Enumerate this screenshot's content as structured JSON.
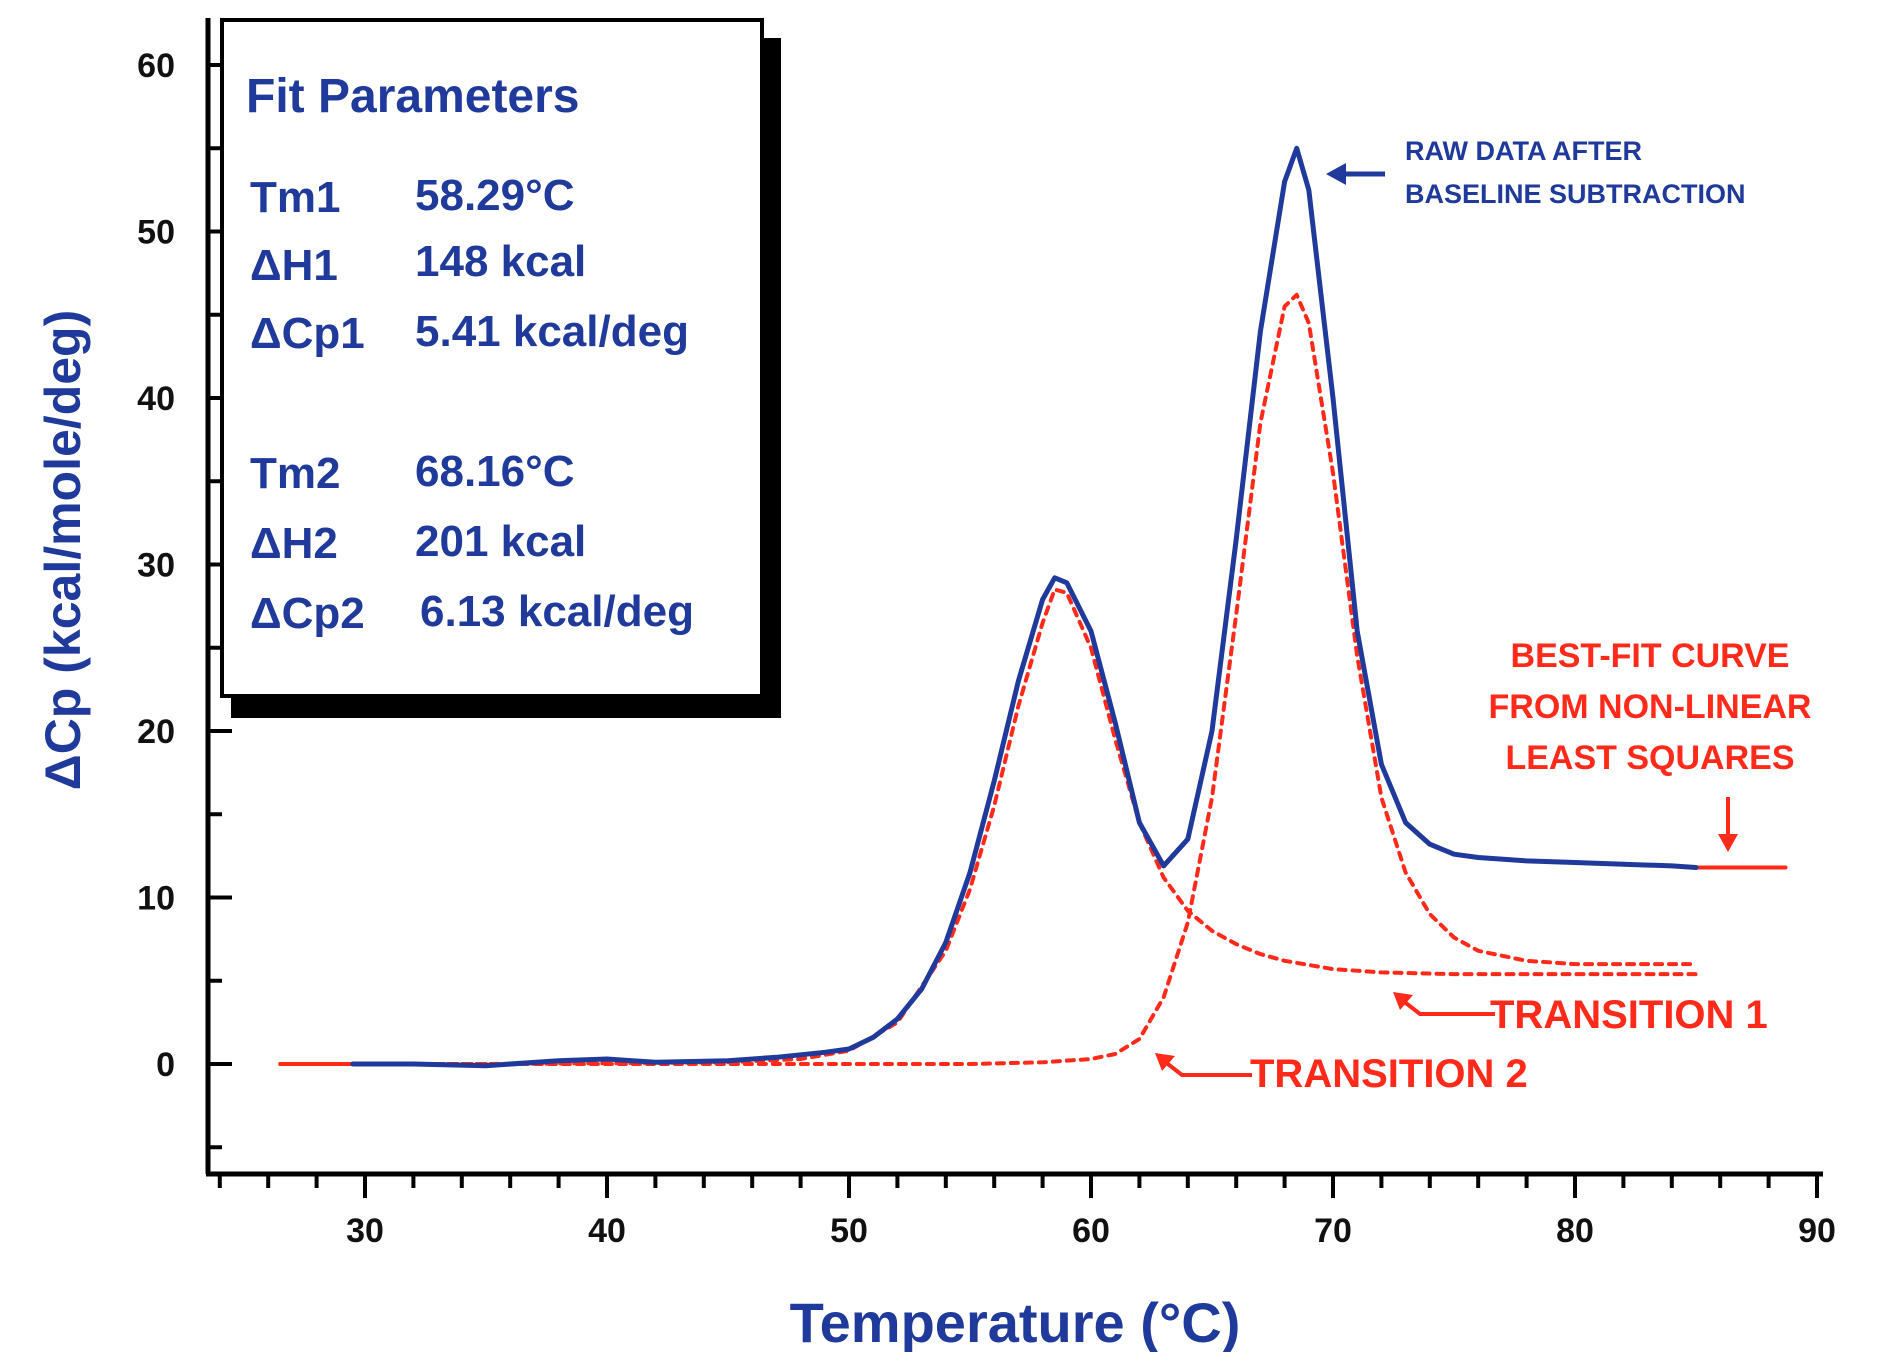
{
  "chart_data": {
    "type": "line",
    "title": "",
    "xlabel": "Temperature (°C)",
    "ylabel": "ΔCp (kcal/mole/deg)",
    "xlim": [
      24,
      90
    ],
    "ylim": [
      -7,
      62
    ],
    "x_ticks": [
      30,
      40,
      50,
      60,
      70,
      80,
      90
    ],
    "x_tick_labels": [
      "30",
      "40",
      "50",
      "60",
      "70",
      "80",
      "90"
    ],
    "y_ticks": [
      0,
      10,
      20,
      30,
      40,
      50,
      60
    ],
    "y_tick_labels": [
      "0",
      "10",
      "20",
      "30",
      "40",
      "50",
      "60"
    ],
    "grid": false,
    "colors": {
      "raw": "#1f3a9a",
      "fit": "#ff2a1a",
      "text_blue": "#1f3a9a",
      "text_red": "#ff2a1a"
    },
    "series": [
      {
        "key": "raw",
        "style": "solid",
        "x": [
          29.5,
          32,
          35,
          38,
          40,
          42,
          45,
          47,
          49,
          50,
          51,
          52,
          53,
          54,
          55,
          56,
          57,
          58,
          58.5,
          59,
          60,
          61,
          62,
          63,
          64,
          65,
          66,
          67,
          68,
          68.5,
          69,
          70,
          71,
          72,
          73,
          74,
          75,
          76,
          78,
          80,
          82,
          84,
          85
        ],
        "y": [
          0,
          0,
          -0.1,
          0.2,
          0.3,
          0.1,
          0.2,
          0.4,
          0.7,
          0.9,
          1.6,
          2.7,
          4.5,
          7.3,
          11.5,
          17,
          23,
          27.9,
          29.2,
          28.9,
          26,
          20.5,
          14.5,
          11.9,
          13.5,
          20,
          31.5,
          44,
          53,
          55,
          52.5,
          40,
          26,
          18,
          14.5,
          13.2,
          12.6,
          12.4,
          12.2,
          12.1,
          12,
          11.9,
          11.8
        ]
      },
      {
        "key": "transition1",
        "style": "dotted",
        "x": [
          26.5,
          35,
          45,
          48,
          50,
          52,
          54,
          55,
          56,
          57,
          58,
          58.5,
          59,
          60,
          61,
          62,
          63,
          64,
          65,
          66,
          67,
          68,
          70,
          72,
          75,
          80,
          85
        ],
        "y": [
          0,
          0,
          0.1,
          0.3,
          0.8,
          2.5,
          6.8,
          10.5,
          15.5,
          21.5,
          26.5,
          28.5,
          28.3,
          25,
          19.5,
          14.5,
          11.2,
          9.2,
          8,
          7.2,
          6.6,
          6.2,
          5.7,
          5.5,
          5.4,
          5.4,
          5.4
        ]
      },
      {
        "key": "transition2",
        "style": "dotted",
        "x": [
          29.5,
          40,
          50,
          55,
          58,
          60,
          61,
          62,
          63,
          64,
          65,
          66,
          67,
          68,
          68.5,
          69,
          70,
          71,
          72,
          73,
          74,
          75,
          76,
          78,
          80,
          85
        ],
        "y": [
          0,
          0,
          0,
          0,
          0.1,
          0.3,
          0.6,
          1.5,
          4,
          8.5,
          16,
          27,
          38.5,
          45.5,
          46.2,
          44.5,
          35.5,
          24.5,
          16,
          11.5,
          9,
          7.6,
          6.8,
          6.2,
          6,
          6
        ]
      },
      {
        "key": "fit_baseline",
        "style": "solid",
        "x": [
          26.5,
          30
        ],
        "y": [
          0,
          0
        ]
      },
      {
        "key": "fit_extension",
        "style": "solid",
        "x": [
          85,
          88.7
        ],
        "y": [
          11.8,
          11.8
        ]
      }
    ],
    "fit_parameters": {
      "title": "Fit Parameters",
      "rows": [
        {
          "name": "Tm1",
          "value": "58.29°C"
        },
        {
          "name": "ΔH1",
          "value": "148 kcal"
        },
        {
          "name": "ΔCp1",
          "value": "5.41 kcal/deg"
        },
        {
          "name": "Tm2",
          "value": "68.16°C"
        },
        {
          "name": "ΔH2",
          "value": "201 kcal"
        },
        {
          "name": "ΔCp2",
          "value": "6.13 kcal/deg"
        }
      ]
    },
    "annotations": {
      "raw_line1": "RAW DATA AFTER",
      "raw_line2": "BASELINE SUBTRACTION",
      "fit_line1": "BEST-FIT CURVE",
      "fit_line2": "FROM NON-LINEAR",
      "fit_line3": "LEAST SQUARES",
      "transition1": "TRANSITION 1",
      "transition2": "TRANSITION 2"
    }
  }
}
